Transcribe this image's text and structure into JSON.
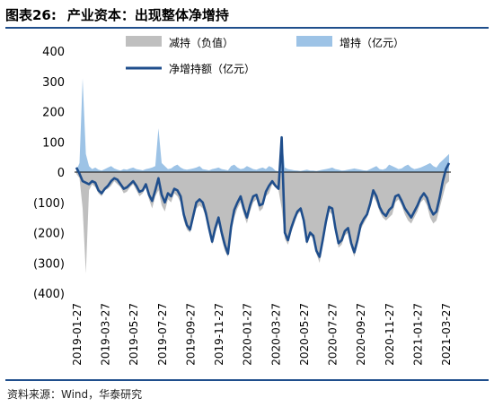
{
  "figure": {
    "label": "图表26:",
    "title": "产业资本：出现整体净增持",
    "source": "资料来源：Wind，华泰研究"
  },
  "chart_data": {
    "type": "area",
    "title": "产业资本：出现整体净增持",
    "ylim": [
      -400,
      400
    ],
    "y_ticks": [
      "400",
      "300",
      "200",
      "100",
      "0",
      "(100)",
      "(200)",
      "(300)",
      "(400)"
    ],
    "x_tick_labels": [
      "2019-01-27",
      "2019-03-27",
      "2019-05-27",
      "2019-07-27",
      "2019-09-27",
      "2019-11-27",
      "2020-01-27",
      "2020-03-27",
      "2020-05-27",
      "2020-07-27",
      "2020-09-27",
      "2020-11-27",
      "2021-01-27",
      "2021-03-27"
    ],
    "colors": {
      "decrease": "#bfbfbf",
      "increase": "#9dc3e6",
      "net": "#1f4e8c"
    },
    "series": [
      {
        "name": "减持（负值）",
        "type": "area",
        "values": [
          -5,
          -20,
          -120,
          -335,
          -60,
          -40,
          -50,
          -70,
          -80,
          -60,
          -55,
          -45,
          -30,
          -40,
          -50,
          -70,
          -65,
          -50,
          -40,
          -60,
          -80,
          -70,
          -50,
          -90,
          -120,
          -80,
          -60,
          -110,
          -130,
          -90,
          -100,
          -70,
          -80,
          -100,
          -160,
          -190,
          -200,
          -160,
          -120,
          -110,
          -120,
          -150,
          -200,
          -240,
          -200,
          -170,
          -220,
          -260,
          -280,
          -200,
          -150,
          -120,
          -100,
          -140,
          -170,
          -130,
          -100,
          -90,
          -130,
          -120,
          -80,
          -70,
          -40,
          -50,
          -60,
          -120,
          -220,
          -240,
          -200,
          -170,
          -140,
          -130,
          -170,
          -240,
          -210,
          -220,
          -270,
          -300,
          -240,
          -180,
          -130,
          -140,
          -200,
          -250,
          -240,
          -210,
          -200,
          -250,
          -280,
          -240,
          -190,
          -170,
          -150,
          -120,
          -80,
          -100,
          -130,
          -150,
          -160,
          -150,
          -140,
          -100,
          -90,
          -110,
          -140,
          -160,
          -170,
          -150,
          -130,
          -100,
          -90,
          -110,
          -150,
          -170,
          -160,
          -120,
          -80,
          -40,
          -30
        ]
      },
      {
        "name": "增持（亿元）",
        "type": "area",
        "values": [
          5,
          30,
          310,
          60,
          20,
          10,
          15,
          8,
          5,
          10,
          15,
          20,
          12,
          8,
          5,
          10,
          8,
          12,
          15,
          10,
          8,
          6,
          10,
          12,
          15,
          20,
          145,
          30,
          20,
          10,
          12,
          20,
          25,
          15,
          10,
          8,
          10,
          12,
          15,
          20,
          10,
          8,
          6,
          10,
          12,
          15,
          10,
          8,
          6,
          20,
          25,
          15,
          10,
          12,
          20,
          15,
          10,
          8,
          12,
          15,
          10,
          20,
          15,
          5,
          3,
          120,
          15,
          10,
          8,
          6,
          5,
          4,
          6,
          8,
          5,
          5,
          4,
          6,
          8,
          10,
          12,
          15,
          10,
          8,
          5,
          6,
          8,
          10,
          12,
          10,
          8,
          6,
          5,
          10,
          15,
          20,
          10,
          8,
          12,
          25,
          20,
          15,
          10,
          12,
          20,
          25,
          15,
          10,
          12,
          15,
          20,
          25,
          30,
          20,
          15,
          30,
          40,
          50,
          60
        ]
      },
      {
        "name": "净增持额（亿元）",
        "type": "line",
        "values": [
          15,
          -5,
          -30,
          -35,
          -40,
          -30,
          -35,
          -60,
          -70,
          -55,
          -45,
          -30,
          -20,
          -25,
          -40,
          -55,
          -50,
          -40,
          -30,
          -45,
          -65,
          -60,
          -40,
          -75,
          -95,
          -60,
          -20,
          -75,
          -100,
          -70,
          -80,
          -55,
          -60,
          -80,
          -140,
          -175,
          -190,
          -145,
          -100,
          -90,
          -100,
          -135,
          -185,
          -230,
          -185,
          -150,
          -200,
          -240,
          -270,
          -180,
          -125,
          -100,
          -80,
          -120,
          -150,
          -110,
          -80,
          -75,
          -110,
          -105,
          -65,
          -45,
          -30,
          -45,
          -55,
          115,
          -200,
          -225,
          -185,
          -155,
          -130,
          -120,
          -160,
          -230,
          -200,
          -210,
          -260,
          -280,
          -225,
          -165,
          -115,
          -120,
          -185,
          -235,
          -225,
          -195,
          -185,
          -235,
          -265,
          -225,
          -175,
          -155,
          -140,
          -105,
          -60,
          -80,
          -115,
          -135,
          -145,
          -125,
          -115,
          -80,
          -75,
          -95,
          -120,
          -135,
          -150,
          -130,
          -110,
          -85,
          -70,
          -85,
          -120,
          -140,
          -130,
          -85,
          -30,
          10,
          30
        ]
      }
    ],
    "legend": [
      {
        "label": "减持（负值）",
        "kind": "swatch",
        "color": "#bfbfbf"
      },
      {
        "label": "增持（亿元）",
        "kind": "swatch",
        "color": "#9dc3e6"
      },
      {
        "label": "净增持额（亿元）",
        "kind": "line",
        "color": "#1f4e8c"
      }
    ],
    "legend_position": "top",
    "grid": false
  }
}
